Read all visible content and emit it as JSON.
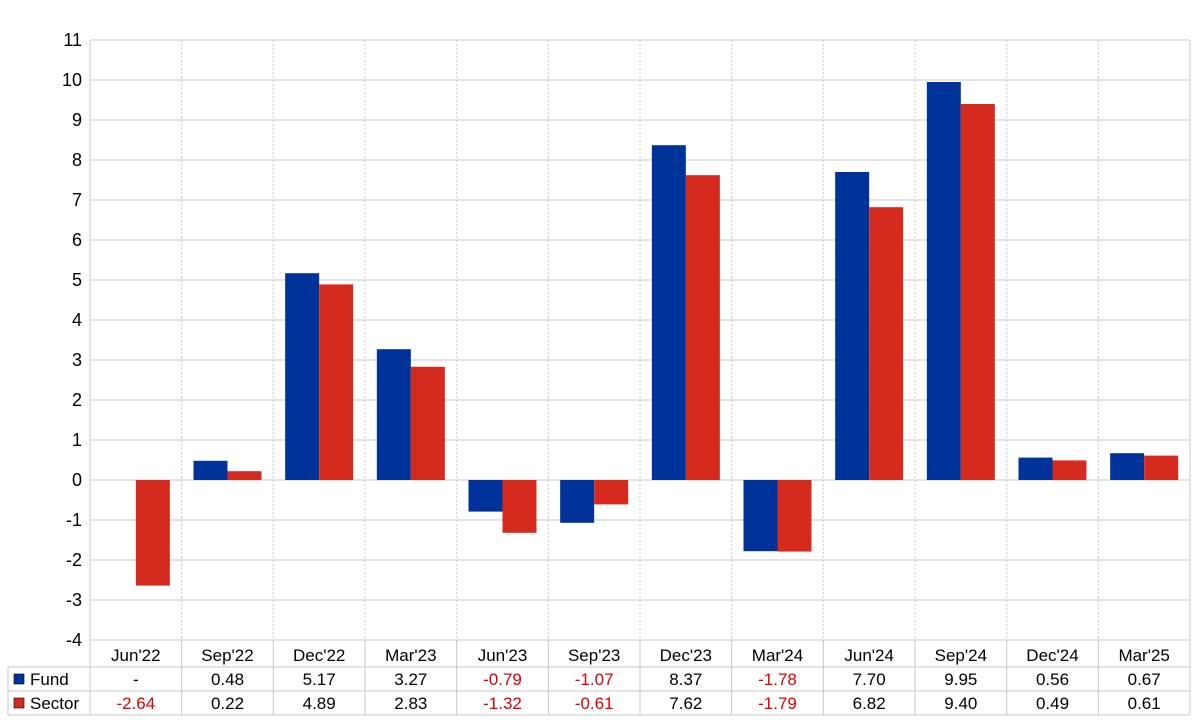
{
  "chart_data": {
    "type": "bar",
    "title": "",
    "xlabel": "",
    "ylabel": "",
    "ylim": [
      -4,
      11
    ],
    "yticks": [
      -4,
      -3,
      -2,
      -1,
      0,
      1,
      2,
      3,
      4,
      5,
      6,
      7,
      8,
      9,
      10,
      11
    ],
    "grid": true,
    "categories": [
      "Jun'22",
      "Sep'22",
      "Dec'22",
      "Mar'23",
      "Jun'23",
      "Sep'23",
      "Dec'23",
      "Mar'24",
      "Jun'24",
      "Sep'24",
      "Dec'24",
      "Mar'25"
    ],
    "series": [
      {
        "name": "Fund",
        "color": "#003399",
        "values": [
          null,
          0.48,
          5.17,
          3.27,
          -0.79,
          -1.07,
          8.37,
          -1.78,
          7.7,
          9.95,
          0.56,
          0.67
        ],
        "labels": [
          "-",
          "0.48",
          "5.17",
          "3.27",
          "-0.79",
          "-1.07",
          "8.37",
          "-1.78",
          "7.70",
          "9.95",
          "0.56",
          "0.67"
        ]
      },
      {
        "name": "Sector",
        "color": "#d52b1e",
        "values": [
          -2.64,
          0.22,
          4.89,
          2.83,
          -1.32,
          -0.61,
          7.62,
          -1.79,
          6.82,
          9.4,
          0.49,
          0.61
        ],
        "labels": [
          "-2.64",
          "0.22",
          "4.89",
          "2.83",
          "-1.32",
          "-0.61",
          "7.62",
          "-1.79",
          "6.82",
          "9.40",
          "0.49",
          "0.61"
        ]
      }
    ],
    "negative_value_color": "#e00000",
    "gridline_color": "#c8c8c8"
  }
}
